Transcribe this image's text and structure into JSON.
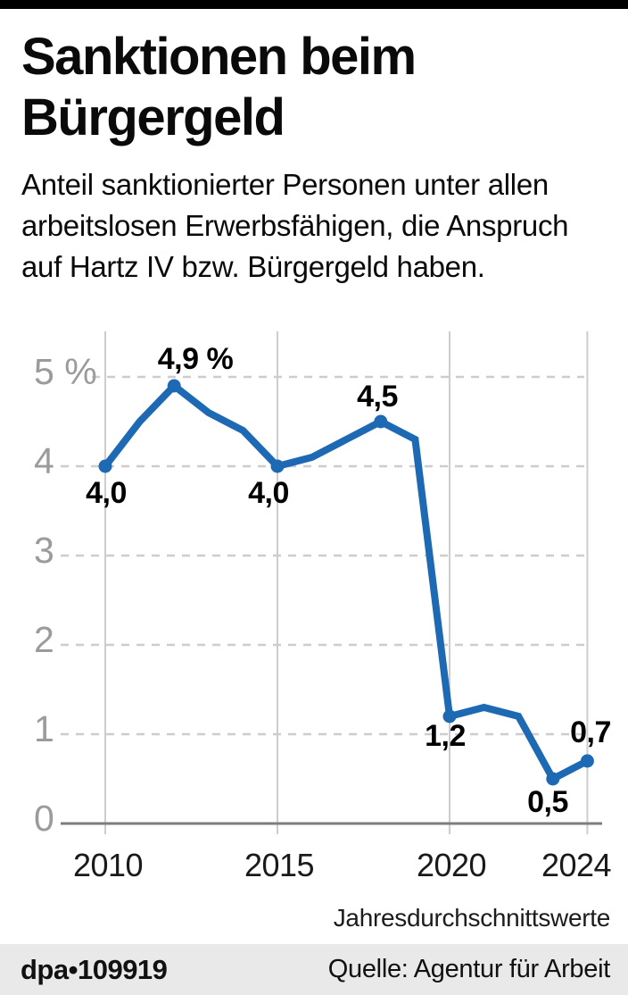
{
  "header": {
    "title_line1": "Sanktionen beim",
    "title_line2": "Bürgergeld",
    "subtitle_lines": [
      "Anteil sanktionierter Personen unter allen",
      "arbeitslosen Erwerbsfähigen, die Anspruch",
      "auf Hartz IV bzw. Bürgergeld haben."
    ]
  },
  "chart_data": {
    "type": "line",
    "title": "Sanktionen beim Bürgergeld",
    "unit": "%",
    "x": [
      2010,
      2011,
      2012,
      2013,
      2014,
      2015,
      2016,
      2017,
      2018,
      2019,
      2020,
      2021,
      2022,
      2023,
      2024
    ],
    "values": [
      4.0,
      4.5,
      4.9,
      4.6,
      4.4,
      4.0,
      4.1,
      4.3,
      4.5,
      4.3,
      1.2,
      1.3,
      1.2,
      0.5,
      0.7
    ],
    "labeled_points": [
      {
        "x": 2010,
        "value": 4.0,
        "label": "4,0"
      },
      {
        "x": 2012,
        "value": 4.9,
        "label": "4,9 %"
      },
      {
        "x": 2015,
        "value": 4.0,
        "label": "4,0"
      },
      {
        "x": 2018,
        "value": 4.5,
        "label": "4,5"
      },
      {
        "x": 2020,
        "value": 1.2,
        "label": "1,2"
      },
      {
        "x": 2023,
        "value": 0.5,
        "label": "0,5"
      },
      {
        "x": 2024,
        "value": 0.7,
        "label": "0,7"
      }
    ],
    "y_ticks": [
      0,
      1,
      2,
      3,
      4,
      5
    ],
    "y_tick_labels": [
      "0",
      "1",
      "2",
      "3",
      "4",
      "5 %"
    ],
    "x_ticks": [
      2010,
      2015,
      2020,
      2024
    ],
    "x_tick_labels": [
      "2010",
      "2015",
      "2020",
      "2024"
    ],
    "ylim": [
      0,
      5.5
    ],
    "grid": {
      "horizontal": "dashed",
      "vertical": "solid"
    },
    "legend": "none",
    "note": "Jahresdurchschnittswerte"
  },
  "colors": {
    "line_blue": "#1e69b4",
    "grid_gray": "#cdcdcd",
    "axis_gray": "#7d7d7d",
    "y_label_gray": "#9b9b9b",
    "footer_bg": "#e9e9e9",
    "top_bar": "#000000"
  },
  "footer": {
    "credit": "dpa•109919",
    "source": "Quelle: Agentur für Arbeit"
  }
}
